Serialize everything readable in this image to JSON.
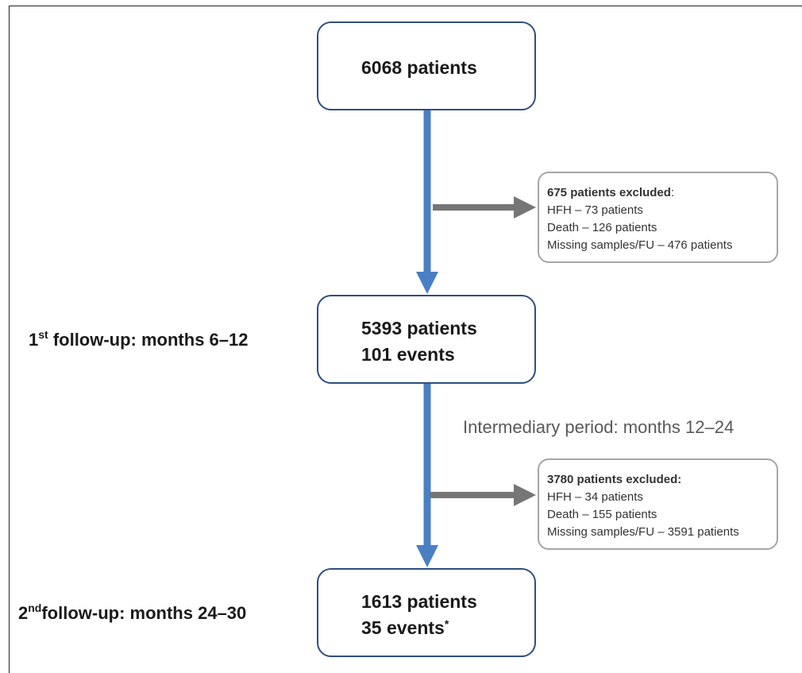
{
  "colors": {
    "arrow_main": "#4a7fc4",
    "arrow_side": "#767676",
    "box_border": "#2f4f7f",
    "excl_border": "#a6a6a6"
  },
  "boxes": {
    "start": {
      "line1": "6068 patients"
    },
    "first": {
      "line1": "5393 patients",
      "line2": "101 events"
    },
    "second": {
      "line1": "1613 patients",
      "line2": "35 events",
      "mark": "*"
    }
  },
  "exclusions": [
    {
      "header": "675 patients excluded",
      "header_suffix": ":",
      "items": [
        "HFH – 73 patients",
        "Death – 126 patients",
        "Missing samples/FU – 476 patients"
      ]
    },
    {
      "header": "3780 patients excluded:",
      "header_suffix": "",
      "items": [
        "HFH – 34 patients",
        "Death – 155 patients",
        "Missing samples/FU – 3591 patients"
      ]
    }
  ],
  "labels": {
    "followup1": {
      "prefix": "1",
      "sup": "st",
      "text": " follow-up: months 6–12"
    },
    "followup2": {
      "prefix": "2",
      "sup": "nd",
      "text": "follow-up: months 24–30"
    },
    "intermediary": "Intermediary period: months 12–24"
  }
}
